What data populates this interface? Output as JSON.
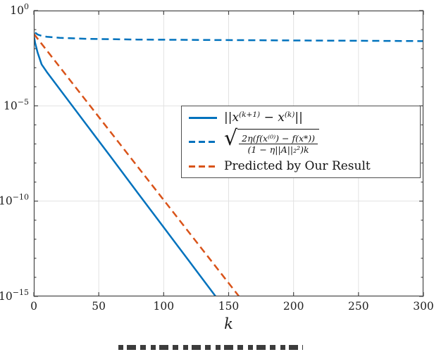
{
  "chart_data": {
    "type": "line",
    "title": "",
    "xlabel": "k",
    "ylabel": "",
    "xlim": [
      0,
      300
    ],
    "x_ticks": [
      0,
      50,
      100,
      150,
      200,
      250,
      300
    ],
    "y_scale": "log10",
    "ylim_exponents": [
      -15,
      0
    ],
    "y_ticks": [
      {
        "exp": 0,
        "base": "10",
        "sup": "0"
      },
      {
        "exp": -5,
        "base": "10",
        "sup": "−5"
      },
      {
        "exp": -10,
        "base": "10",
        "sup": "−10"
      },
      {
        "exp": -15,
        "base": "10",
        "sup": "−15"
      }
    ],
    "grid": true,
    "legend_position": "middle-right",
    "colors": {
      "grid": "#e2e2e2",
      "axis": "#474747",
      "labels": "#1f1f1f"
    },
    "series": [
      {
        "name": "||x^(k+1) - x^(k)||",
        "color": "#0072BD",
        "style": "solid",
        "points": [
          [
            0,
            0.045
          ],
          [
            0.5,
            0.032
          ],
          [
            1,
            0.02
          ],
          [
            2,
            0.011
          ],
          [
            3,
            0.006
          ],
          [
            4.5,
            0.003
          ],
          [
            6,
            0.0015
          ],
          [
            8,
            0.00095
          ],
          [
            10,
            0.0006
          ],
          [
            20,
            7.4e-05
          ],
          [
            40,
            1.15e-06
          ],
          [
            60,
            1.8e-08
          ],
          [
            80,
            2.7e-10
          ],
          [
            100,
            4.2e-12
          ],
          [
            120,
            6.5e-14
          ],
          [
            140,
            1e-15
          ]
        ]
      },
      {
        "name": "sqrt(2eta(f(x^(0))-f(x^*))/((1-eta||A||_2^2)k))",
        "color": "#0072BD",
        "style": "dashed",
        "points": [
          [
            1,
            0.07
          ],
          [
            3,
            0.055
          ],
          [
            6,
            0.047
          ],
          [
            10,
            0.042
          ],
          [
            20,
            0.037
          ],
          [
            40,
            0.033
          ],
          [
            80,
            0.03
          ],
          [
            120,
            0.029
          ],
          [
            160,
            0.028
          ],
          [
            200,
            0.027
          ],
          [
            250,
            0.026
          ],
          [
            300,
            0.025
          ]
        ]
      },
      {
        "name": "Predicted by Our Result",
        "color": "#D95319",
        "style": "dashed",
        "points": [
          [
            0,
            0.06
          ],
          [
            158,
            1e-15
          ]
        ]
      }
    ]
  },
  "legend": {
    "items": [
      {
        "type": "math",
        "parts": {
          "pre": "||x",
          "sup1": "(k+1)",
          "mid": " − x",
          "sup2": "(k)",
          "post": "||"
        }
      },
      {
        "type": "sqrt-fraction",
        "radical": "√",
        "numerator": "2η(f(x⁽⁰⁾) − f(x*))",
        "denominator": "(1 − η||A||₂²)k"
      },
      {
        "type": "text",
        "label": "Predicted by Our Result"
      }
    ]
  }
}
